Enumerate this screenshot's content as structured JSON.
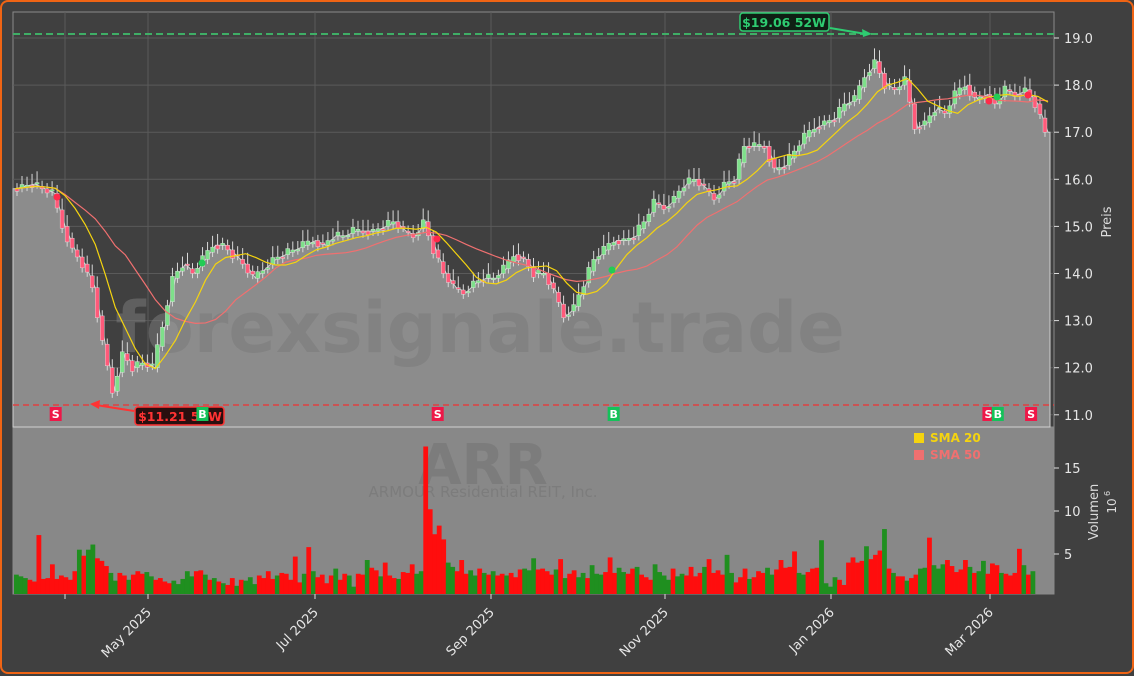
{
  "chart_data": [
    {
      "type": "candlestick",
      "title": "",
      "ticker": "ARR",
      "company": "ARMOUR Residential REIT, Inc.",
      "watermark": "forexsignale.trade",
      "ylabel": "Preis",
      "ylim": [
        10.75,
        19.55
      ],
      "yticks": [
        "11.0",
        "12.0",
        "13.0",
        "14.0",
        "15.0",
        "16.0",
        "17.0",
        "18.0",
        "19.0"
      ],
      "xticks": [
        "May 2025",
        "Jul 2025",
        "Sep 2025",
        "Nov 2025",
        "Jan 2026",
        "Mar 2026"
      ],
      "grid": true,
      "annotations": {
        "high_52w": {
          "label": "$19.06 52W",
          "value": 19.06,
          "color": "#2ecc71"
        },
        "low_52w": {
          "label": "$11.21 52W",
          "value": 11.21,
          "color": "#ff3333"
        }
      },
      "close_series_approx": [
        15.8,
        15.85,
        15.9,
        15.8,
        15.7,
        15.0,
        14.5,
        14.2,
        13.7,
        12.5,
        11.5,
        12.3,
        12.0,
        12.1,
        12.0,
        12.9,
        13.9,
        14.2,
        14.0,
        14.3,
        14.6,
        14.6,
        14.4,
        14.2,
        13.9,
        14.1,
        14.3,
        14.4,
        14.5,
        14.6,
        14.7,
        14.6,
        14.8,
        14.8,
        14.9,
        14.9,
        14.9,
        15.0,
        15.1,
        14.9,
        14.8,
        15.1,
        14.5,
        14.0,
        13.7,
        13.6,
        13.8,
        13.9,
        13.9,
        14.1,
        14.4,
        14.3,
        14.0,
        14.0,
        13.6,
        13.1,
        13.3,
        13.8,
        14.3,
        14.5,
        14.7,
        14.7,
        14.8,
        15.1,
        15.5,
        15.4,
        15.6,
        15.9,
        16.0,
        15.8,
        15.6,
        15.9,
        16.0,
        16.7,
        16.7,
        16.7,
        16.2,
        16.3,
        16.6,
        16.9,
        17.1,
        17.2,
        17.3,
        17.6,
        17.7,
        18.2,
        18.5,
        18.0,
        17.9,
        18.1,
        17.1,
        17.2,
        17.5,
        17.4,
        17.8,
        18.0,
        17.7,
        17.8,
        17.6,
        17.9,
        17.8,
        17.9,
        17.6,
        17.0
      ],
      "series": [
        {
          "name": "SMA 20",
          "color": "#f5d40f"
        },
        {
          "name": "SMA 50",
          "color": "#f07070"
        }
      ],
      "signals": [
        {
          "type": "S",
          "x_pct": 0.041
        },
        {
          "type": "B",
          "x_pct": 0.182
        },
        {
          "type": "S",
          "x_pct": 0.408
        },
        {
          "type": "B",
          "x_pct": 0.577
        },
        {
          "type": "S",
          "x_pct": 0.937
        },
        {
          "type": "B",
          "x_pct": 0.946
        },
        {
          "type": "S",
          "x_pct": 0.978
        }
      ]
    },
    {
      "type": "bar",
      "ylabel": "Volumen",
      "yunit": "10^6",
      "yticks": [
        "5",
        "10",
        "15"
      ],
      "ylim": [
        0,
        18.5
      ],
      "peak_value": 17.5,
      "colors": {
        "up": "#1f8f1f",
        "down": "#ff0d0d"
      }
    }
  ],
  "legend": {
    "items": [
      {
        "label": "SMA 20",
        "color": "#f5d40f"
      },
      {
        "label": "SMA 50",
        "color": "#f07070"
      }
    ]
  },
  "axis": {
    "price_label": "Preis",
    "volume_label": "Volumen",
    "volume_exp_base": "10",
    "volume_exp_sup": "6"
  },
  "labels": {
    "ticker": "ARR",
    "company": "ARMOUR Residential REIT, Inc.",
    "watermark": "forexsignale.trade",
    "high_52w": "$19.06 52W",
    "low_52w": "$11.21 52W"
  }
}
